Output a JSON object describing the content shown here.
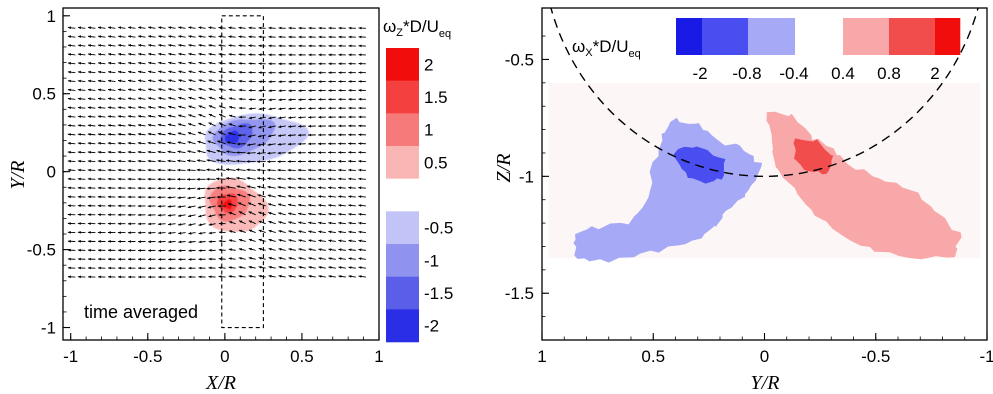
{
  "chart_data": [
    {
      "type": "heatmap",
      "id": "left",
      "overlay": "velocity vector field",
      "xlabel": "X/R",
      "ylabel": "Y/R",
      "xlim": [
        -1.05,
        1.0
      ],
      "ylim": [
        -1.08,
        1.05
      ],
      "xticks": [
        "-1",
        "-0.5",
        "0",
        "0.5",
        "1"
      ],
      "xtick_values": [
        -1,
        -0.5,
        0,
        0.5,
        1
      ],
      "yticks": [
        "1",
        "0.5",
        "0",
        "-0.5",
        "-1"
      ],
      "ytick_values": [
        1,
        0.5,
        0,
        -0.5,
        -1
      ],
      "annotation": "time averaged",
      "dashed_box": {
        "x": [
          -0.02,
          0.25
        ],
        "y": [
          -1.0,
          1.0
        ]
      },
      "colorbar": {
        "title_prefix": "ω",
        "title_sub": "Z",
        "title_mid": "*D/U",
        "title_sub2": "eq",
        "orientation": "vertical",
        "bins": [
          {
            "from": 1.75,
            "to": 2.25,
            "color": "#f20d0d"
          },
          {
            "from": 1.25,
            "to": 1.75,
            "color": "#f54040"
          },
          {
            "from": 0.75,
            "to": 1.25,
            "color": "#f77a7a"
          },
          {
            "from": 0.25,
            "to": 0.75,
            "color": "#fab5b5"
          },
          {
            "from": -0.25,
            "to": 0.25,
            "color": "#ffffff"
          },
          {
            "from": -0.75,
            "to": -0.25,
            "color": "#c2c4f7"
          },
          {
            "from": -1.25,
            "to": -0.75,
            "color": "#8f93ef"
          },
          {
            "from": -1.75,
            "to": -1.25,
            "color": "#5a5ee9"
          },
          {
            "from": -2.25,
            "to": -1.75,
            "color": "#2a2ee6"
          }
        ],
        "tick_labels": [
          "2",
          "1.5",
          "1",
          "0.5",
          "-0.5",
          "-1",
          "-1.5",
          "-2"
        ]
      },
      "structures": [
        {
          "sign": "negative",
          "center": [
            0.08,
            0.22
          ],
          "peak": -2.0
        },
        {
          "sign": "positive",
          "center": [
            0.04,
            -0.21
          ],
          "peak": 2.0
        }
      ]
    },
    {
      "type": "heatmap",
      "id": "right",
      "xlabel": "Y/R",
      "ylabel": "Z/R",
      "xlim": [
        1.0,
        -1.0
      ],
      "ylim": [
        -1.7,
        -0.28
      ],
      "xticks": [
        "1",
        "0.5",
        "0",
        "-0.5",
        "-1"
      ],
      "xtick_values": [
        1,
        0.5,
        0,
        -0.5,
        -1
      ],
      "yticks": [
        "-0.5",
        "-1",
        "-1.5"
      ],
      "ytick_values": [
        -0.5,
        -1,
        -1.5
      ],
      "dashed_circle": {
        "center": [
          0,
          0
        ],
        "radius": 1
      },
      "colorbar": {
        "title_prefix": "ω",
        "title_sub": "X",
        "title_mid": "*D/U",
        "title_sub2": "eq",
        "orientation": "horizontal",
        "bins": [
          {
            "color": "#1a1ae6"
          },
          {
            "color": "#4a4df0"
          },
          {
            "color": "#a6a9f5"
          },
          {
            "color": "#ffffff"
          },
          {
            "color": "#f8a8a8"
          },
          {
            "color": "#f24d4d"
          },
          {
            "color": "#f20d0d"
          }
        ],
        "tick_labels": [
          "-2",
          "-0.8",
          "-0.4",
          "0.4",
          "0.8",
          "2"
        ]
      },
      "structures": [
        {
          "sign": "negative",
          "center": [
            0.33,
            -1.0
          ],
          "peak": -0.8
        },
        {
          "sign": "positive",
          "center": [
            -0.3,
            -1.1
          ],
          "peak": 0.8
        }
      ]
    }
  ]
}
